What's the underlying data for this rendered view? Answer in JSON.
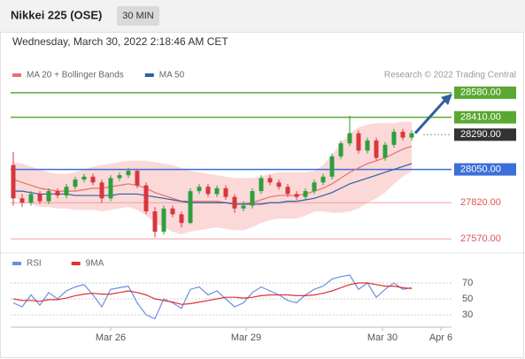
{
  "header": {
    "title": "Nikkei 225 (OSE)",
    "interval": "30 MIN",
    "timestamp": "Wednesday, March 30, 2022 2:18:46 AM CET",
    "credit": "Research © 2022 Trading Central"
  },
  "chart_data": [
    {
      "type": "candlestick",
      "up_color": "#2e9e3e",
      "down_color": "#d9363e",
      "xlim": [
        -0.3,
        49.5
      ],
      "ylim": [
        27510,
        28640
      ],
      "xticks": [
        {
          "value": 11,
          "label": "Mar 26"
        },
        {
          "value": 26.3,
          "label": "Mar 29"
        },
        {
          "value": 41.7,
          "label": "Mar 30"
        },
        {
          "value": 48.3,
          "label": "Apr 6"
        }
      ],
      "band": {
        "name": "MA 20 + Bollinger Bands",
        "color": "#f4a0a0",
        "upper": [
          28100,
          28090,
          28070,
          28050,
          28030,
          28020,
          28020,
          28030,
          28050,
          28070,
          28080,
          28090,
          28100,
          28110,
          28110,
          28110,
          28100,
          28090,
          28080,
          28060,
          28040,
          28030,
          28020,
          28010,
          28000,
          27990,
          27990,
          27990,
          28000,
          28020,
          28030,
          28030,
          28030,
          28030,
          28040,
          28080,
          28150,
          28230,
          28300,
          28340,
          28360,
          28370,
          28370,
          28370,
          28380,
          28380
        ],
        "lower": [
          27860,
          27830,
          27810,
          27790,
          27790,
          27780,
          27780,
          27770,
          27770,
          27770,
          27760,
          27770,
          27780,
          27790,
          27770,
          27730,
          27680,
          27650,
          27620,
          27600,
          27620,
          27630,
          27640,
          27650,
          27640,
          27630,
          27630,
          27650,
          27680,
          27700,
          27710,
          27710,
          27710,
          27730,
          27760,
          27760,
          27750,
          27750,
          27760,
          27780,
          27820,
          27850,
          27890,
          27950,
          28000,
          28040
        ]
      },
      "series": [
        {
          "name": "MA 20 + Bollinger Bands",
          "color": "#e8706e",
          "values": [
            27980,
            27960,
            27940,
            27920,
            27910,
            27900,
            27900,
            27900,
            27910,
            27920,
            27920,
            27930,
            27940,
            27950,
            27940,
            27920,
            27890,
            27870,
            27850,
            27830,
            27830,
            27830,
            27830,
            27830,
            27820,
            27810,
            27810,
            27820,
            27840,
            27860,
            27870,
            27870,
            27870,
            27880,
            27900,
            27920,
            27950,
            27990,
            28030,
            28060,
            28090,
            28110,
            28130,
            28160,
            28190,
            28210
          ]
        },
        {
          "name": "MA 50",
          "color": "#2f5f9e",
          "values": [
            27900,
            27900,
            27890,
            27880,
            27880,
            27880,
            27880,
            27870,
            27870,
            27870,
            27870,
            27870,
            27880,
            27880,
            27880,
            27870,
            27860,
            27850,
            27840,
            27830,
            27820,
            27820,
            27820,
            27820,
            27820,
            27810,
            27810,
            27810,
            27810,
            27820,
            27820,
            27830,
            27830,
            27840,
            27850,
            27870,
            27890,
            27920,
            27950,
            27970,
            27990,
            28010,
            28030,
            28050,
            28070,
            28090
          ]
        }
      ],
      "candles": [
        {
          "open": 28080,
          "high": 28170,
          "low": 27800,
          "close": 27850
        },
        {
          "open": 27850,
          "high": 27880,
          "low": 27790,
          "close": 27820
        },
        {
          "open": 27820,
          "high": 27900,
          "low": 27800,
          "close": 27880
        },
        {
          "open": 27880,
          "high": 27900,
          "low": 27810,
          "close": 27830
        },
        {
          "open": 27830,
          "high": 27920,
          "low": 27810,
          "close": 27900
        },
        {
          "open": 27900,
          "high": 27920,
          "low": 27850,
          "close": 27870
        },
        {
          "open": 27870,
          "high": 27950,
          "low": 27850,
          "close": 27930
        },
        {
          "open": 27930,
          "high": 28000,
          "low": 27910,
          "close": 27980
        },
        {
          "open": 27980,
          "high": 28020,
          "low": 27960,
          "close": 28000
        },
        {
          "open": 28000,
          "high": 28020,
          "low": 27940,
          "close": 27960
        },
        {
          "open": 27960,
          "high": 27980,
          "low": 27820,
          "close": 27850
        },
        {
          "open": 27850,
          "high": 28010,
          "low": 27830,
          "close": 27990
        },
        {
          "open": 27990,
          "high": 28030,
          "low": 27970,
          "close": 28010
        },
        {
          "open": 28010,
          "high": 28060,
          "low": 27990,
          "close": 28040
        },
        {
          "open": 28040,
          "high": 28050,
          "low": 27920,
          "close": 27940
        },
        {
          "open": 27940,
          "high": 27960,
          "low": 27740,
          "close": 27760
        },
        {
          "open": 27760,
          "high": 27790,
          "low": 27580,
          "close": 27620
        },
        {
          "open": 27620,
          "high": 27800,
          "low": 27600,
          "close": 27780
        },
        {
          "open": 27780,
          "high": 27800,
          "low": 27720,
          "close": 27740
        },
        {
          "open": 27740,
          "high": 27760,
          "low": 27650,
          "close": 27680
        },
        {
          "open": 27680,
          "high": 27920,
          "low": 27670,
          "close": 27900
        },
        {
          "open": 27900,
          "high": 27950,
          "low": 27880,
          "close": 27930
        },
        {
          "open": 27930,
          "high": 27950,
          "low": 27860,
          "close": 27880
        },
        {
          "open": 27880,
          "high": 27940,
          "low": 27860,
          "close": 27920
        },
        {
          "open": 27920,
          "high": 27940,
          "low": 27840,
          "close": 27860
        },
        {
          "open": 27860,
          "high": 27880,
          "low": 27750,
          "close": 27780
        },
        {
          "open": 27780,
          "high": 27830,
          "low": 27760,
          "close": 27800
        },
        {
          "open": 27800,
          "high": 27920,
          "low": 27780,
          "close": 27900
        },
        {
          "open": 27900,
          "high": 28010,
          "low": 27880,
          "close": 27990
        },
        {
          "open": 27990,
          "high": 28010,
          "low": 27940,
          "close": 27960
        },
        {
          "open": 27960,
          "high": 27980,
          "low": 27910,
          "close": 27930
        },
        {
          "open": 27930,
          "high": 27950,
          "low": 27860,
          "close": 27880
        },
        {
          "open": 27880,
          "high": 27900,
          "low": 27840,
          "close": 27860
        },
        {
          "open": 27860,
          "high": 27920,
          "low": 27840,
          "close": 27900
        },
        {
          "open": 27900,
          "high": 27980,
          "low": 27880,
          "close": 27960
        },
        {
          "open": 27960,
          "high": 28020,
          "low": 27940,
          "close": 28000
        },
        {
          "open": 28000,
          "high": 28160,
          "low": 27980,
          "close": 28140
        },
        {
          "open": 28140,
          "high": 28250,
          "low": 28120,
          "close": 28230
        },
        {
          "open": 28230,
          "high": 28420,
          "low": 28210,
          "close": 28300
        },
        {
          "open": 28300,
          "high": 28320,
          "low": 28160,
          "close": 28180
        },
        {
          "open": 28180,
          "high": 28270,
          "low": 28160,
          "close": 28250
        },
        {
          "open": 28250,
          "high": 28270,
          "low": 28110,
          "close": 28130
        },
        {
          "open": 28130,
          "high": 28240,
          "low": 28110,
          "close": 28220
        },
        {
          "open": 28220,
          "high": 28330,
          "low": 28200,
          "close": 28310
        },
        {
          "open": 28310,
          "high": 28330,
          "low": 28250,
          "close": 28270
        },
        {
          "open": 28270,
          "high": 28320,
          "low": 28250,
          "close": 28300
        }
      ],
      "levels": [
        {
          "value": 28580,
          "label": "28580.00",
          "color": "#5aa832",
          "style": "box"
        },
        {
          "value": 28410,
          "label": "28410.00",
          "color": "#5aa832",
          "style": "box"
        },
        {
          "value": 28290,
          "label": "28290.00",
          "color": "#333333",
          "style": "dotted"
        },
        {
          "value": 28050,
          "label": "28050.00",
          "color": "#3d6fd8",
          "style": "box"
        },
        {
          "value": 27820,
          "label": "27820.00",
          "color": "#e05555",
          "style": "text"
        },
        {
          "value": 27570,
          "label": "27570.00",
          "color": "#e05555",
          "style": "text"
        }
      ]
    },
    {
      "type": "line",
      "xlim": [
        -0.3,
        49.5
      ],
      "ylim": [
        20,
        100
      ],
      "yticks": [
        30,
        50,
        70
      ],
      "series": [
        {
          "name": "RSI",
          "color": "#6b8fe0",
          "values": [
            45,
            40,
            55,
            42,
            58,
            50,
            60,
            65,
            68,
            55,
            40,
            62,
            64,
            66,
            45,
            30,
            25,
            50,
            45,
            38,
            62,
            65,
            55,
            60,
            50,
            40,
            45,
            58,
            65,
            60,
            55,
            48,
            45,
            55,
            62,
            66,
            75,
            78,
            80,
            62,
            70,
            52,
            62,
            70,
            62,
            64
          ]
        },
        {
          "name": "9MA",
          "color": "#e03030",
          "values": [
            50,
            48,
            48,
            47,
            49,
            49,
            51,
            54,
            56,
            57,
            56,
            56,
            58,
            60,
            58,
            55,
            50,
            48,
            46,
            43,
            44,
            46,
            48,
            50,
            52,
            52,
            51,
            52,
            54,
            55,
            55,
            55,
            54,
            54,
            55,
            57,
            60,
            64,
            68,
            70,
            70,
            68,
            66,
            66,
            64,
            63
          ]
        }
      ]
    }
  ]
}
